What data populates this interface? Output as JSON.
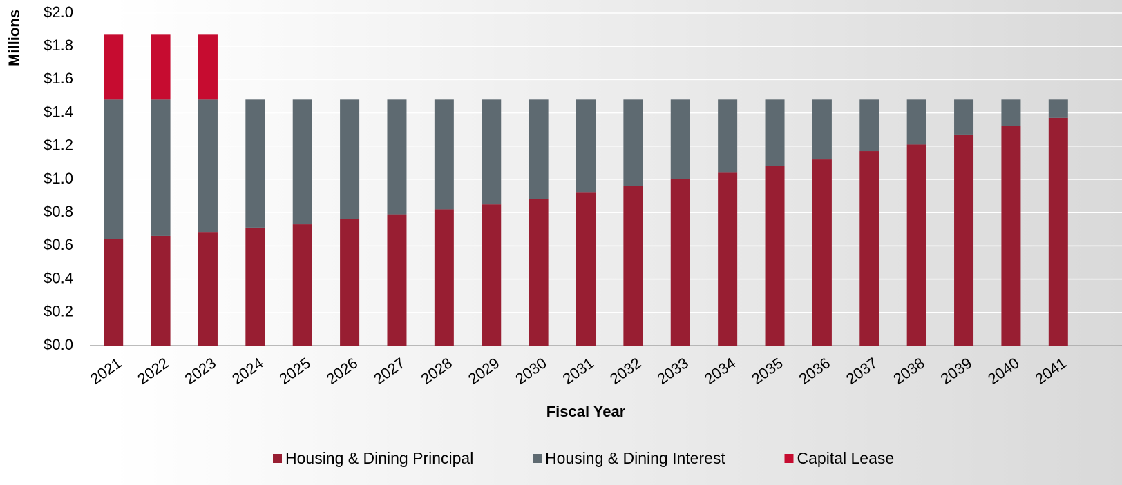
{
  "chart_data": {
    "type": "stacked_bar",
    "y_axis_label": "Millions",
    "x_axis_label": "Fiscal Year",
    "categories": [
      "2021",
      "2022",
      "2023",
      "2024",
      "2025",
      "2026",
      "2027",
      "2028",
      "2029",
      "2030",
      "2031",
      "2032",
      "2033",
      "2034",
      "2035",
      "2036",
      "2037",
      "2038",
      "2039",
      "2040",
      "2041"
    ],
    "series": [
      {
        "name": "Housing & Dining Principal",
        "color": "#981e32",
        "values": [
          0.64,
          0.66,
          0.68,
          0.71,
          0.73,
          0.76,
          0.79,
          0.82,
          0.85,
          0.88,
          0.92,
          0.96,
          1.0,
          1.04,
          1.08,
          1.12,
          1.17,
          1.21,
          1.27,
          1.32,
          1.37
        ]
      },
      {
        "name": "Housing & Dining Interest",
        "color": "#5e6a71",
        "values": [
          0.84,
          0.82,
          0.8,
          0.77,
          0.75,
          0.72,
          0.69,
          0.66,
          0.63,
          0.6,
          0.56,
          0.52,
          0.48,
          0.44,
          0.4,
          0.36,
          0.31,
          0.27,
          0.21,
          0.16,
          0.11
        ]
      },
      {
        "name": "Capital Lease",
        "color": "#c60c30",
        "values": [
          0.39,
          0.39,
          0.39,
          null,
          null,
          null,
          null,
          null,
          null,
          null,
          null,
          null,
          null,
          null,
          null,
          null,
          null,
          null,
          null,
          null,
          null
        ]
      }
    ],
    "ylim": [
      0,
      2
    ],
    "yticks": [
      {
        "value": 0,
        "label": "$0.0"
      },
      {
        "value": 0.2,
        "label": "$0.2"
      },
      {
        "value": 0.4,
        "label": "$0.4"
      },
      {
        "value": 0.6,
        "label": "$0.6"
      },
      {
        "value": 0.8,
        "label": "$0.8"
      },
      {
        "value": 1,
        "label": "$1.0"
      },
      {
        "value": 1.2,
        "label": "$1.2"
      },
      {
        "value": 1.4,
        "label": "$1.4"
      },
      {
        "value": 1.6,
        "label": "$1.6"
      },
      {
        "value": 1.8,
        "label": "$1.8"
      },
      {
        "value": 2,
        "label": "$2.0"
      }
    ],
    "grid": true,
    "legend": "bottom"
  }
}
